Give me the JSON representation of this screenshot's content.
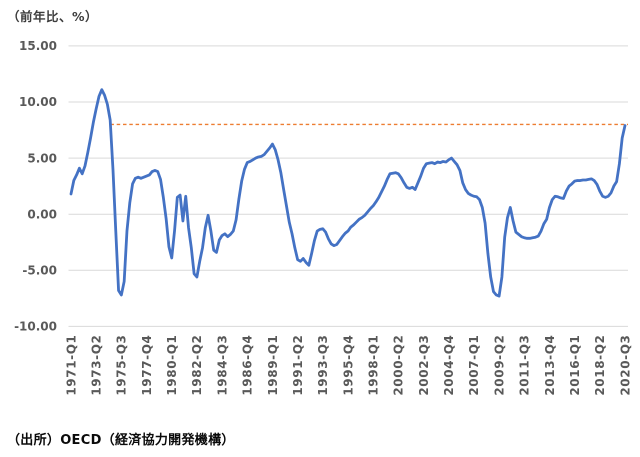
{
  "title": "（前年比、%）",
  "source": "（出所）OECD（経済協力開発機構）",
  "colors": {
    "series_line": "#4472C4",
    "reference_line": "#ED7D31",
    "gridline": "#D9D9D9",
    "axis_text": "#595959"
  },
  "chart_data": {
    "type": "line",
    "title": "（前年比、%）",
    "ylabel": "前年比、%",
    "x_start": "1971-Q1",
    "x_end": "2020-Q3",
    "frequency": "quarterly",
    "ylim": [
      -10,
      15
    ],
    "grid": true,
    "legend": false,
    "y_tick_labels": [
      "15.00",
      "10.00",
      "5.00",
      "0.00",
      "-5.00",
      "-10.00"
    ],
    "y_ticks": [
      15,
      10,
      5,
      0,
      -5,
      -10
    ],
    "x_tick_labels": [
      "1971-Q1",
      "1973-Q2",
      "1975-Q3",
      "1977-Q4",
      "1980-Q1",
      "1982-Q2",
      "1984-Q3",
      "1986-Q4",
      "1989-Q1",
      "1991-Q2",
      "1993-Q3",
      "1995-Q4",
      "1998-Q1",
      "2000-Q2",
      "2002-Q3",
      "2004-Q4",
      "2007-Q1",
      "2009-Q2",
      "2011-Q3",
      "2013-Q4",
      "2016-Q1",
      "2018-Q2",
      "2020-Q3"
    ],
    "x_tick_interval_quarters": 9,
    "reference_line": {
      "value": 8.0,
      "style": "dashed",
      "color": "#ED7D31"
    },
    "series": [
      {
        "name": "前年比",
        "color": "#4472C4",
        "values": [
          1.8,
          3.0,
          3.5,
          4.1,
          3.6,
          4.3,
          5.5,
          6.8,
          8.2,
          9.4,
          10.5,
          11.1,
          10.6,
          9.8,
          8.4,
          4.0,
          -1.5,
          -6.8,
          -7.2,
          -6.0,
          -1.5,
          1.0,
          2.7,
          3.2,
          3.3,
          3.2,
          3.3,
          3.4,
          3.5,
          3.8,
          3.9,
          3.8,
          3.1,
          1.5,
          -0.4,
          -2.9,
          -3.9,
          -1.5,
          1.5,
          1.7,
          -0.6,
          1.6,
          -1.2,
          -3.0,
          -5.3,
          -5.6,
          -4.2,
          -3.0,
          -1.2,
          -0.1,
          -1.5,
          -3.2,
          -3.4,
          -2.3,
          -1.9,
          -1.75,
          -2.0,
          -1.8,
          -1.5,
          -0.5,
          1.35,
          2.95,
          4.0,
          4.6,
          4.7,
          4.85,
          5.0,
          5.1,
          5.15,
          5.3,
          5.6,
          5.9,
          6.25,
          5.75,
          4.85,
          3.7,
          2.2,
          0.75,
          -0.7,
          -1.75,
          -3.0,
          -4.05,
          -4.2,
          -3.95,
          -4.3,
          -4.55,
          -3.5,
          -2.35,
          -1.5,
          -1.35,
          -1.3,
          -1.6,
          -2.2,
          -2.65,
          -2.8,
          -2.7,
          -2.35,
          -2.0,
          -1.7,
          -1.5,
          -1.15,
          -0.95,
          -0.7,
          -0.45,
          -0.3,
          -0.1,
          0.2,
          0.5,
          0.75,
          1.1,
          1.5,
          2.0,
          2.5,
          3.1,
          3.6,
          3.65,
          3.7,
          3.6,
          3.25,
          2.8,
          2.4,
          2.3,
          2.4,
          2.2,
          2.8,
          3.4,
          4.1,
          4.5,
          4.55,
          4.6,
          4.5,
          4.65,
          4.6,
          4.7,
          4.65,
          4.85,
          5.0,
          4.7,
          4.4,
          3.9,
          2.8,
          2.2,
          1.85,
          1.7,
          1.6,
          1.55,
          1.3,
          0.6,
          -0.8,
          -3.5,
          -5.6,
          -6.9,
          -7.2,
          -7.3,
          -5.6,
          -2.05,
          -0.3,
          0.6,
          -0.6,
          -1.6,
          -1.8,
          -2.0,
          -2.1,
          -2.15,
          -2.15,
          -2.1,
          -2.05,
          -1.95,
          -1.5,
          -0.85,
          -0.45,
          0.6,
          1.3,
          1.6,
          1.55,
          1.45,
          1.4,
          2.05,
          2.5,
          2.7,
          2.95,
          3.0,
          3.0,
          3.05,
          3.05,
          3.1,
          3.15,
          3.0,
          2.65,
          2.05,
          1.6,
          1.5,
          1.6,
          1.9,
          2.5,
          2.9,
          4.5,
          6.8,
          7.9
        ]
      }
    ]
  }
}
